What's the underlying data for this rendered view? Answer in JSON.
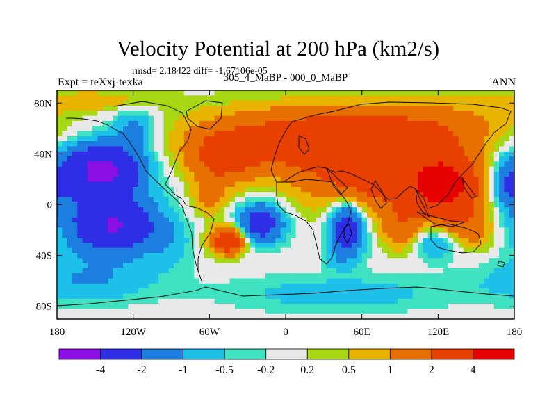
{
  "chart_data": {
    "type": "heatmap",
    "title": "Velocity Potential at 200 hPa (km2/s)",
    "stats": "rmsd= 2.18422 diff= -1.67106e-05",
    "left_label": "Expt = teXxj-texka",
    "center_label": "305_4_MaBP - 000_0_MaBP",
    "right_label": "ANN",
    "x_range": [
      -180,
      180
    ],
    "y_range": [
      -90,
      90
    ],
    "x_ticks": [
      {
        "value": -180,
        "label": "180"
      },
      {
        "value": -120,
        "label": "120W"
      },
      {
        "value": -60,
        "label": "60W"
      },
      {
        "value": 0,
        "label": "0"
      },
      {
        "value": 60,
        "label": "60E"
      },
      {
        "value": 120,
        "label": "120E"
      },
      {
        "value": 180,
        "label": "180"
      }
    ],
    "y_ticks": [
      {
        "value": 80,
        "label": "80N"
      },
      {
        "value": 40,
        "label": "40N"
      },
      {
        "value": 0,
        "label": "0"
      },
      {
        "value": -40,
        "label": "40S"
      },
      {
        "value": -80,
        "label": "80S"
      }
    ],
    "levels": [
      -4,
      -2,
      -1,
      -0.5,
      -0.2,
      0.2,
      0.5,
      1,
      2,
      4
    ],
    "level_labels": [
      "-4",
      "-2",
      "-1",
      "-0.5",
      "-0.2",
      "0.2",
      "0.5",
      "1",
      "2",
      "4"
    ],
    "colors": [
      "#8c10e6",
      "#2e2ee6",
      "#1c7fe0",
      "#1cc0e8",
      "#3ee2c0",
      "#e8e8e8",
      "#a8d814",
      "#e8b400",
      "#e87000",
      "#e84000",
      "#e60000"
    ],
    "centers": [
      {
        "lon": -145,
        "lat": 28,
        "amp": -3.6,
        "sx": 22,
        "sy": 14
      },
      {
        "lon": -133,
        "lat": -18,
        "amp": -3.2,
        "sx": 22,
        "sy": 14
      },
      {
        "lon": -150,
        "lat": 5,
        "amp": -1.4,
        "sx": 30,
        "sy": 30
      },
      {
        "lon": -118,
        "lat": 60,
        "amp": -1.2,
        "sx": 12,
        "sy": 12
      },
      {
        "lon": -20,
        "lat": -15,
        "amp": -3.0,
        "sx": 13,
        "sy": 11
      },
      {
        "lon": 48,
        "lat": -18,
        "amp": -3.2,
        "sx": 10,
        "sy": 16
      },
      {
        "lon": -155,
        "lat": -60,
        "amp": -0.9,
        "sx": 40,
        "sy": 12
      },
      {
        "lon": 40,
        "lat": -70,
        "amp": -0.8,
        "sx": 60,
        "sy": 10
      },
      {
        "lon": 120,
        "lat": -30,
        "amp": -1.3,
        "sx": 14,
        "sy": 9
      },
      {
        "lon": 175,
        "lat": 15,
        "amp": -1.4,
        "sx": 8,
        "sy": 12
      },
      {
        "lon": 40,
        "lat": -45,
        "amp": -0.5,
        "sx": 6,
        "sy": 4
      },
      {
        "lon": 0,
        "lat": 50,
        "amp": 2.5,
        "sx": 55,
        "sy": 18
      },
      {
        "lon": -50,
        "lat": 35,
        "amp": 1.8,
        "sx": 18,
        "sy": 14
      },
      {
        "lon": 65,
        "lat": 20,
        "amp": 2.5,
        "sx": 35,
        "sy": 20
      },
      {
        "lon": 125,
        "lat": 15,
        "amp": 4.8,
        "sx": 20,
        "sy": 18
      },
      {
        "lon": 100,
        "lat": 60,
        "amp": 1.8,
        "sx": 55,
        "sy": 15
      },
      {
        "lon": -45,
        "lat": -28,
        "amp": 3.5,
        "sx": 10,
        "sy": 8
      },
      {
        "lon": 145,
        "lat": -20,
        "amp": 1.5,
        "sx": 14,
        "sy": 12
      },
      {
        "lon": -90,
        "lat": -30,
        "amp": -0.6,
        "sx": 12,
        "sy": 15
      },
      {
        "lon": -150,
        "lat": 82,
        "amp": 0.8,
        "sx": 40,
        "sy": 6
      },
      {
        "lon": -60,
        "lat": 5,
        "amp": 1.2,
        "sx": 10,
        "sy": 10
      },
      {
        "lon": 90,
        "lat": -20,
        "amp": 1.5,
        "sx": 10,
        "sy": 12
      }
    ]
  }
}
